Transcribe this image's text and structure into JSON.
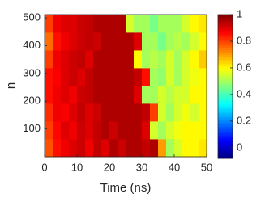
{
  "chart_data": {
    "type": "heatmap",
    "colormap": "jet",
    "xlabel": "Time (ns)",
    "ylabel": "n",
    "x_edges": [
      0,
      2.5,
      5,
      7.5,
      10,
      12.5,
      15,
      17.5,
      20,
      22.5,
      25,
      27.5,
      30,
      32.5,
      35,
      37.5,
      40,
      42.5,
      45,
      47.5,
      50
    ],
    "y_edges": [
      0,
      64,
      128,
      192,
      256,
      320,
      384,
      448,
      512
    ],
    "z": [
      [
        0.78,
        0.85,
        0.88,
        0.9,
        0.92,
        0.88,
        0.93,
        0.9,
        0.95,
        0.92,
        0.95,
        0.95,
        0.93,
        0.95,
        0.7,
        0.5,
        0.55,
        0.6,
        0.6,
        0.62
      ],
      [
        0.8,
        0.86,
        0.9,
        0.88,
        0.92,
        0.9,
        0.93,
        0.95,
        0.92,
        0.95,
        0.95,
        0.95,
        0.9,
        0.55,
        0.5,
        0.55,
        0.58,
        0.6,
        0.6,
        0.6
      ],
      [
        0.82,
        0.88,
        0.87,
        0.9,
        0.93,
        0.9,
        0.92,
        0.95,
        0.95,
        0.95,
        0.95,
        0.95,
        0.93,
        0.8,
        0.55,
        0.5,
        0.55,
        0.58,
        0.55,
        0.6
      ],
      [
        0.85,
        0.88,
        0.9,
        0.88,
        0.92,
        0.93,
        0.95,
        0.95,
        0.95,
        0.95,
        0.95,
        0.9,
        0.5,
        0.5,
        0.55,
        0.52,
        0.55,
        0.55,
        0.6,
        0.6
      ],
      [
        0.85,
        0.87,
        0.9,
        0.92,
        0.9,
        0.93,
        0.95,
        0.95,
        0.95,
        0.95,
        0.95,
        0.93,
        0.85,
        0.5,
        0.48,
        0.55,
        0.5,
        0.55,
        0.58,
        0.6
      ],
      [
        0.8,
        0.88,
        0.9,
        0.92,
        0.93,
        0.9,
        0.95,
        0.95,
        0.95,
        0.95,
        0.95,
        0.6,
        0.5,
        0.52,
        0.5,
        0.55,
        0.5,
        0.55,
        0.6,
        0.65
      ],
      [
        0.75,
        0.85,
        0.88,
        0.9,
        0.92,
        0.93,
        0.92,
        0.95,
        0.95,
        0.95,
        0.95,
        0.9,
        0.5,
        0.5,
        0.45,
        0.5,
        0.52,
        0.5,
        0.55,
        0.6
      ],
      [
        0.8,
        0.88,
        0.9,
        0.9,
        0.92,
        0.93,
        0.95,
        0.95,
        0.95,
        0.95,
        0.55,
        0.5,
        0.5,
        0.45,
        0.5,
        0.5,
        0.5,
        0.55,
        0.6,
        0.62
      ]
    ],
    "xlim": [
      0,
      50
    ],
    "xticks": [
      0,
      10,
      20,
      30,
      40,
      50
    ],
    "ylim": [
      0,
      512
    ],
    "yticks": [
      100,
      200,
      300,
      400,
      500
    ],
    "clim": [
      -0.08,
      1
    ],
    "cticks": [
      0,
      0.2,
      0.4,
      0.6,
      0.8,
      1
    ]
  }
}
